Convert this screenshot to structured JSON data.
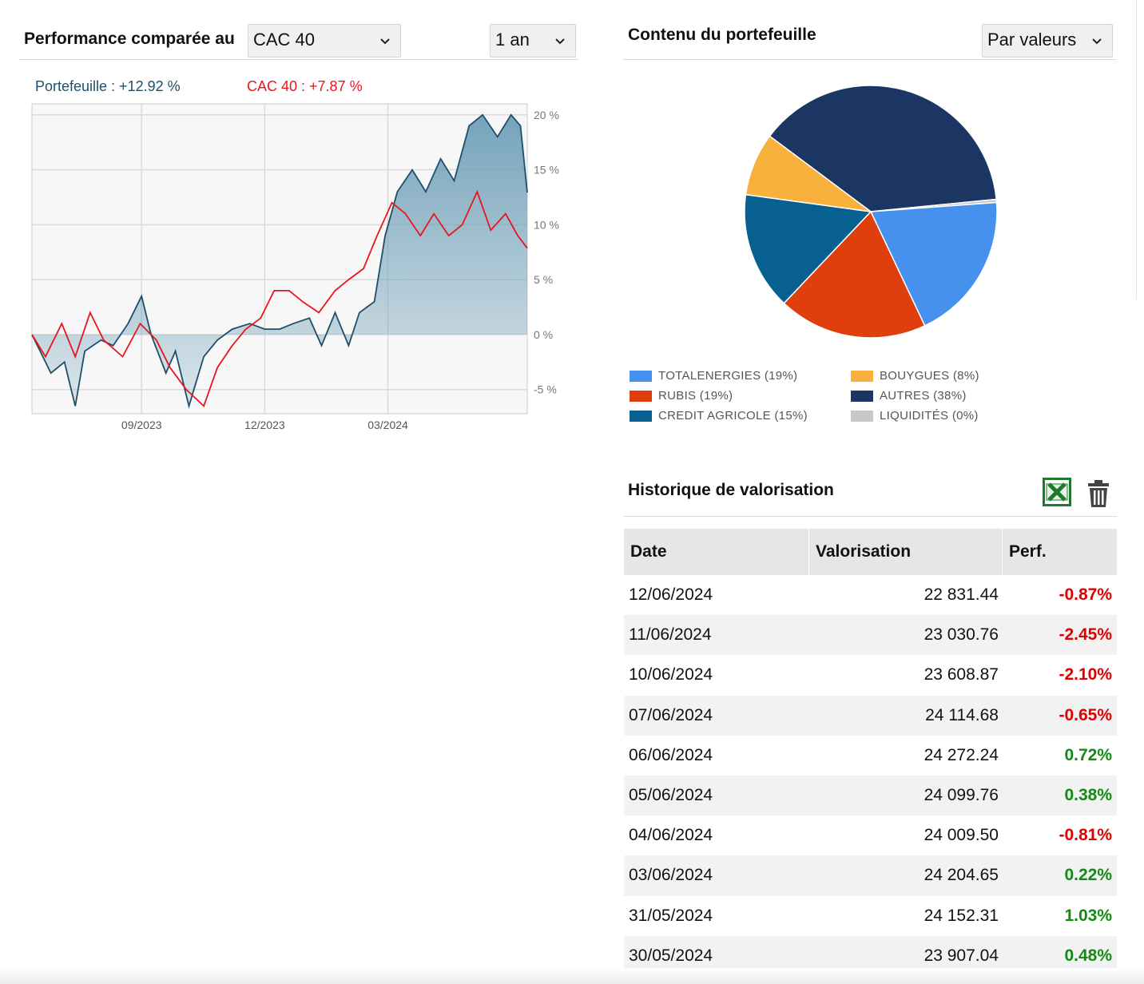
{
  "performance": {
    "title": "Performance comparée au",
    "index_select": {
      "value": "CAC 40"
    },
    "period_select": {
      "value": "1 an"
    },
    "legend_portfolio": "Portefeuille : +12.92 %",
    "legend_index": "CAC 40 : +7.87 %"
  },
  "portfolio": {
    "title": "Contenu du portefeuille",
    "view_select": {
      "value": "Par valeurs"
    }
  },
  "history": {
    "title": "Historique de valorisation",
    "excel_icon": "excel-export-icon",
    "trash_icon": "trash-icon",
    "columns": [
      "Date",
      "Valorisation",
      "Perf."
    ],
    "rows": [
      {
        "date": "12/06/2024",
        "value": "22 831.44",
        "perf": "-0.87%",
        "positive": false
      },
      {
        "date": "11/06/2024",
        "value": "23 030.76",
        "perf": "-2.45%",
        "positive": false
      },
      {
        "date": "10/06/2024",
        "value": "23 608.87",
        "perf": "-2.10%",
        "positive": false
      },
      {
        "date": "07/06/2024",
        "value": "24 114.68",
        "perf": "-0.65%",
        "positive": false
      },
      {
        "date": "06/06/2024",
        "value": "24 272.24",
        "perf": "0.72%",
        "positive": true
      },
      {
        "date": "05/06/2024",
        "value": "24 099.76",
        "perf": "0.38%",
        "positive": true
      },
      {
        "date": "04/06/2024",
        "value": "24 009.50",
        "perf": "-0.81%",
        "positive": false
      },
      {
        "date": "03/06/2024",
        "value": "24 204.65",
        "perf": "0.22%",
        "positive": true
      },
      {
        "date": "31/05/2024",
        "value": "24 152.31",
        "perf": "1.03%",
        "positive": true
      },
      {
        "date": "30/05/2024",
        "value": "23 907.04",
        "perf": "0.48%",
        "positive": true
      }
    ]
  },
  "colors": {
    "portfolio_line": "#1f4e6a",
    "portfolio_fill": "#6e9fb8",
    "index_line": "#e8161c",
    "negative": "#e00000",
    "positive": "#138a13"
  },
  "chart_data": [
    {
      "type": "area",
      "x_tick_labels": [
        "09/2023",
        "12/2023",
        "03/2024"
      ],
      "y_tick_labels": [
        "20 %",
        "15 %",
        "10 %",
        "5 %",
        "0 %",
        "-5 %"
      ],
      "ylim": [
        -7.2,
        21
      ],
      "grid": true,
      "legend_position": "top-left",
      "x_start": "2023-06-12",
      "x_end": "2024-06-12",
      "series": [
        {
          "name": "Portefeuille : +12.92 %",
          "color": "#1f4e6a",
          "fill": true,
          "points": [
            [
              "2023-06-12",
              0
            ],
            [
              "2023-06-26",
              -3.5
            ],
            [
              "2023-07-06",
              -2.5
            ],
            [
              "2023-07-14",
              -6.5
            ],
            [
              "2023-07-21",
              -1.5
            ],
            [
              "2023-08-02",
              -0.5
            ],
            [
              "2023-08-11",
              -1
            ],
            [
              "2023-08-22",
              1
            ],
            [
              "2023-09-01",
              3.5
            ],
            [
              "2023-09-08",
              0
            ],
            [
              "2023-09-19",
              -3.5
            ],
            [
              "2023-09-26",
              -1.5
            ],
            [
              "2023-10-06",
              -6.5
            ],
            [
              "2023-10-17",
              -2
            ],
            [
              "2023-10-27",
              -0.5
            ],
            [
              "2023-11-07",
              0.5
            ],
            [
              "2023-11-20",
              1
            ],
            [
              "2023-12-01",
              0.5
            ],
            [
              "2023-12-12",
              0.5
            ],
            [
              "2023-12-22",
              1
            ],
            [
              "2024-01-03",
              1.5
            ],
            [
              "2024-01-12",
              -1
            ],
            [
              "2024-01-22",
              2
            ],
            [
              "2024-02-01",
              -1
            ],
            [
              "2024-02-09",
              2
            ],
            [
              "2024-02-20",
              3
            ],
            [
              "2024-02-28",
              9
            ],
            [
              "2024-03-08",
              13
            ],
            [
              "2024-03-19",
              15
            ],
            [
              "2024-03-29",
              13
            ],
            [
              "2024-04-09",
              16
            ],
            [
              "2024-04-19",
              14
            ],
            [
              "2024-04-30",
              19
            ],
            [
              "2024-05-10",
              20
            ],
            [
              "2024-05-21",
              18
            ],
            [
              "2024-05-31",
              20
            ],
            [
              "2024-06-07",
              19
            ],
            [
              "2024-06-12",
              12.92
            ]
          ]
        },
        {
          "name": "CAC 40 : +7.87 %",
          "color": "#e8161c",
          "fill": false,
          "points": [
            [
              "2023-06-12",
              0
            ],
            [
              "2023-06-22",
              -2
            ],
            [
              "2023-07-04",
              1
            ],
            [
              "2023-07-14",
              -2
            ],
            [
              "2023-07-25",
              2
            ],
            [
              "2023-08-04",
              -0.5
            ],
            [
              "2023-08-18",
              -2
            ],
            [
              "2023-08-31",
              1
            ],
            [
              "2023-09-12",
              -0.5
            ],
            [
              "2023-09-22",
              -3
            ],
            [
              "2023-10-04",
              -5
            ],
            [
              "2023-10-17",
              -6.5
            ],
            [
              "2023-10-27",
              -3
            ],
            [
              "2023-11-07",
              -1
            ],
            [
              "2023-11-17",
              0.5
            ],
            [
              "2023-11-28",
              1.5
            ],
            [
              "2023-12-08",
              4
            ],
            [
              "2023-12-19",
              4
            ],
            [
              "2023-12-29",
              3
            ],
            [
              "2024-01-10",
              2
            ],
            [
              "2024-01-22",
              4
            ],
            [
              "2024-02-01",
              5
            ],
            [
              "2024-02-12",
              6
            ],
            [
              "2024-02-22",
              9
            ],
            [
              "2024-03-04",
              12
            ],
            [
              "2024-03-14",
              11
            ],
            [
              "2024-03-25",
              9
            ],
            [
              "2024-04-04",
              11
            ],
            [
              "2024-04-15",
              9
            ],
            [
              "2024-04-25",
              10
            ],
            [
              "2024-05-06",
              13
            ],
            [
              "2024-05-16",
              9.5
            ],
            [
              "2024-05-27",
              11
            ],
            [
              "2024-06-05",
              9
            ],
            [
              "2024-06-12",
              7.87
            ]
          ]
        }
      ]
    },
    {
      "type": "pie",
      "slices": [
        {
          "label": "AUTRES (38%)",
          "value": 38,
          "color": "#1c3664"
        },
        {
          "label": "LIQUIDITÉS (0%)",
          "value": 0.4,
          "color": "#c8c8c8"
        },
        {
          "label": "TOTALENERGIES (19%)",
          "value": 19,
          "color": "#4690ee"
        },
        {
          "label": "RUBIS (19%)",
          "value": 19,
          "color": "#de3f0d"
        },
        {
          "label": "CREDIT AGRICOLE (15%)",
          "value": 15,
          "color": "#07608f"
        },
        {
          "label": "BOUYGUES (8%)",
          "value": 8,
          "color": "#f8b13d"
        }
      ],
      "legend": [
        {
          "label": "TOTALENERGIES (19%)",
          "color": "#4690ee"
        },
        {
          "label": "RUBIS (19%)",
          "color": "#de3f0d"
        },
        {
          "label": "CREDIT AGRICOLE (15%)",
          "color": "#07608f"
        },
        {
          "label": "BOUYGUES (8%)",
          "color": "#f8b13d"
        },
        {
          "label": "AUTRES (38%)",
          "color": "#1c3664"
        },
        {
          "label": "LIQUIDITÉS (0%)",
          "color": "#c8c8c8"
        }
      ]
    }
  ]
}
